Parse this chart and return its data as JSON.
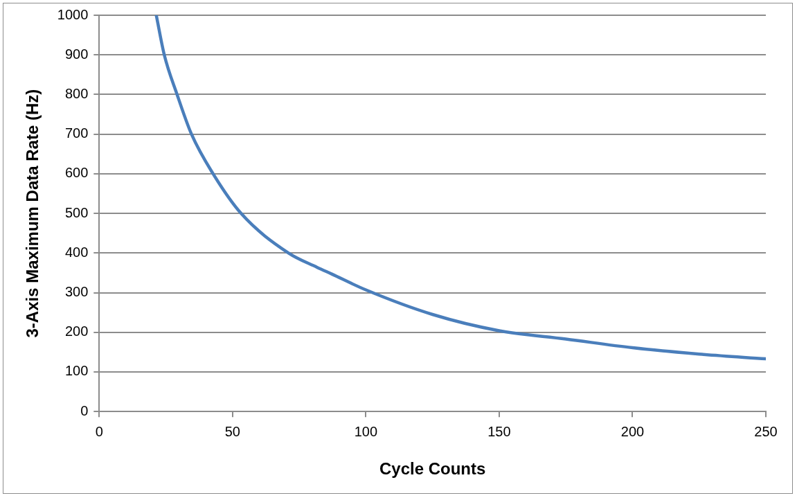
{
  "chart_data": {
    "type": "line",
    "xlabel": "Cycle Counts",
    "ylabel": "3-Axis Maximum Data Rate (Hz)",
    "series": [
      {
        "color": "#4a7ebb",
        "x": [
          21.4,
          24.4,
          29.2,
          34.6,
          42.7,
          53.2,
          71,
          81.7,
          87.2,
          100,
          125,
          150,
          175,
          200,
          225,
          250
        ],
        "values": [
          1000,
          900,
          800,
          700,
          600,
          500,
          400,
          364,
          347,
          307,
          245,
          204,
          183,
          161,
          145,
          133
        ]
      }
    ],
    "xlim": [
      0,
      250
    ],
    "xticks": [
      0,
      50,
      100,
      150,
      200,
      250
    ],
    "ylim": [
      0,
      1000
    ],
    "yticks": [
      0,
      100,
      200,
      300,
      400,
      500,
      600,
      700,
      800,
      900,
      1000
    ],
    "grid": "y",
    "legend": false,
    "marker": "none",
    "line_style": "solid"
  }
}
